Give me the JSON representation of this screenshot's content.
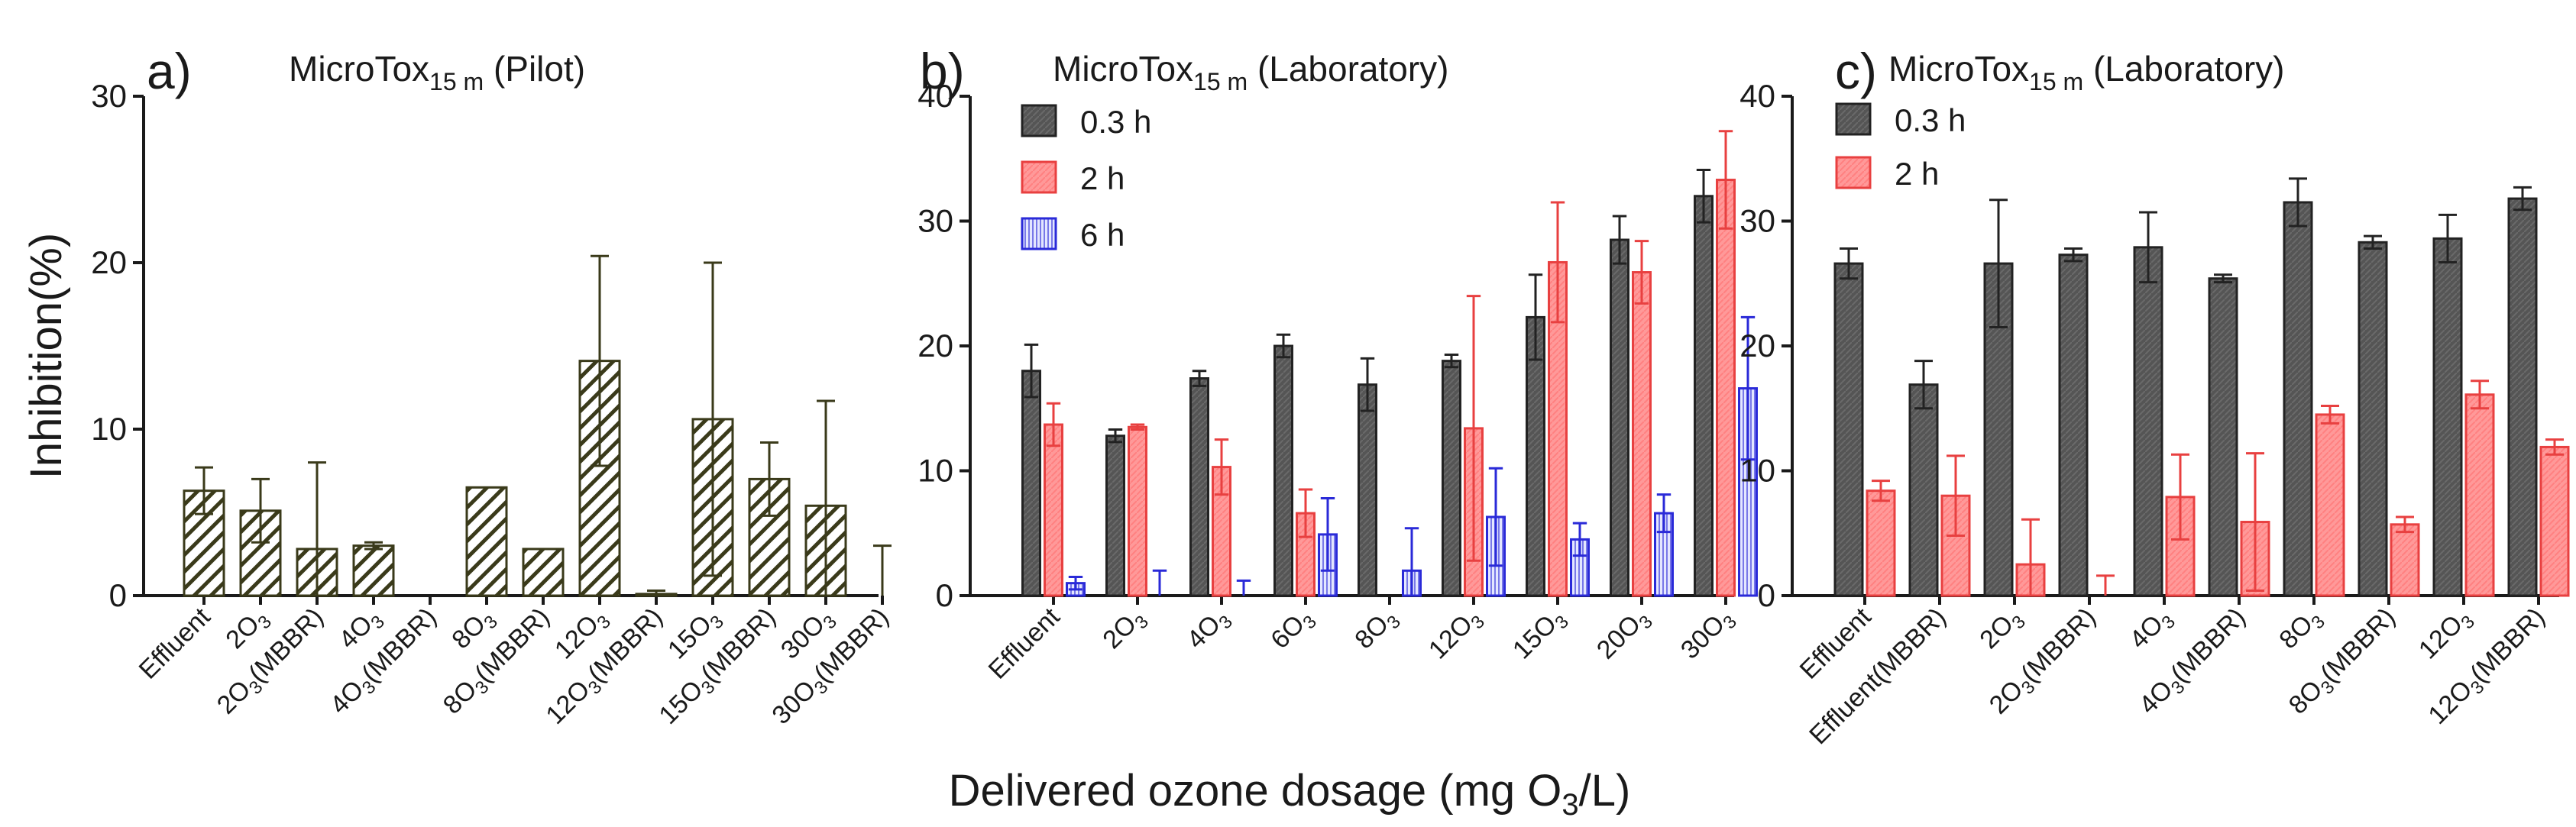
{
  "figure": {
    "ylabel": "Inhibition(%)",
    "xlabel": {
      "prefix": "Delivered ozone dosage (mg O",
      "sub": "3",
      "suffix": "/L)"
    }
  },
  "colors": {
    "axis": "#1a1a1a",
    "pilot_bar": "#3a3a1a",
    "dark_fill": "#555555",
    "dark_stroke": "#222222",
    "red_fill": "#ff9999",
    "red_stroke": "#e84040",
    "blue_fill": "#d0d6ff",
    "blue_stroke": "#2a2ad8"
  },
  "chart_data": [
    {
      "id": "a",
      "panel_label": "a)",
      "type": "bar",
      "title": {
        "main": "MicroTox",
        "sub": "15 m",
        "rest": " (Pilot)"
      },
      "ylim": [
        0,
        30
      ],
      "yticks": [
        0,
        10,
        20,
        30
      ],
      "categories": [
        "Effluent",
        "2O3",
        "2O3(MBBR)",
        "4O3",
        "4O3(MBBR)",
        "8O3",
        "8O3(MBBR)",
        "12O3",
        "12O3(MBBR)",
        "15O3",
        "15O3(MBBR)",
        "30O3",
        "30O3(MBBR)"
      ],
      "series": [
        {
          "name": "Pilot",
          "style": "hatch-pilot",
          "values": [
            6.3,
            5.1,
            2.8,
            3.0,
            0.0,
            6.5,
            2.8,
            14.1,
            0.1,
            10.6,
            7.0,
            5.4,
            0.0
          ],
          "errors": [
            1.4,
            1.9,
            5.2,
            0.2,
            0.0,
            0.0,
            0.0,
            6.3,
            0.2,
            9.4,
            2.2,
            6.3,
            3.0
          ]
        }
      ]
    },
    {
      "id": "b",
      "panel_label": "b)",
      "type": "bar",
      "title": {
        "main": "MicroTox",
        "sub": "15 m",
        "rest": " (Laboratory)"
      },
      "ylim": [
        0,
        40
      ],
      "yticks": [
        0,
        10,
        20,
        30,
        40
      ],
      "legend_position": "top-left",
      "categories": [
        "Effluent",
        "2O3",
        "4O3",
        "6O3",
        "8O3",
        "12O3",
        "15O3",
        "20O3",
        "30O3"
      ],
      "series": [
        {
          "name": "0.3 h",
          "style": "dark",
          "values": [
            18.0,
            12.8,
            17.4,
            20.0,
            16.9,
            18.8,
            22.3,
            28.5,
            32.0
          ],
          "errors": [
            2.1,
            0.5,
            0.6,
            0.9,
            2.1,
            0.5,
            3.4,
            1.9,
            2.1
          ]
        },
        {
          "name": "2 h",
          "style": "red",
          "values": [
            13.7,
            13.5,
            10.3,
            6.6,
            0.0,
            13.4,
            26.7,
            25.9,
            33.3
          ],
          "errors": [
            1.7,
            0.2,
            2.2,
            1.9,
            0.0,
            10.6,
            4.8,
            2.5,
            3.9
          ]
        },
        {
          "name": "6 h",
          "style": "blue",
          "values": [
            1.0,
            0.0,
            0.0,
            4.9,
            2.0,
            6.3,
            4.5,
            6.6,
            16.6
          ],
          "errors": [
            0.5,
            2.0,
            1.2,
            2.9,
            3.4,
            3.9,
            1.3,
            1.5,
            5.7
          ]
        }
      ]
    },
    {
      "id": "c",
      "panel_label": "c)",
      "type": "bar",
      "title": {
        "main": "MicroTox",
        "sub": "15 m",
        "rest": " (Laboratory)"
      },
      "ylim": [
        0,
        40
      ],
      "yticks": [
        0,
        10,
        20,
        30,
        40
      ],
      "legend_position": "top-left",
      "categories": [
        "Effluent",
        "Effluent(MBBR)",
        "2O3",
        "2O3(MBBR)",
        "4O3",
        "4O3(MBBR)",
        "8O3",
        "8O3(MBBR)",
        "12O3",
        "12O3(MBBR)"
      ],
      "series": [
        {
          "name": "0.3 h",
          "style": "dark",
          "values": [
            26.6,
            16.9,
            26.6,
            27.3,
            27.9,
            25.4,
            31.5,
            28.3,
            28.6,
            31.8
          ],
          "errors": [
            1.2,
            1.9,
            5.1,
            0.5,
            2.8,
            0.3,
            1.9,
            0.5,
            1.9,
            0.9
          ]
        },
        {
          "name": "2 h",
          "style": "red",
          "values": [
            8.4,
            8.0,
            2.5,
            0.0,
            7.9,
            5.9,
            14.5,
            5.7,
            16.1,
            11.9
          ],
          "errors": [
            0.8,
            3.2,
            3.6,
            1.6,
            3.4,
            5.5,
            0.7,
            0.6,
            1.1,
            0.6
          ]
        }
      ]
    }
  ]
}
